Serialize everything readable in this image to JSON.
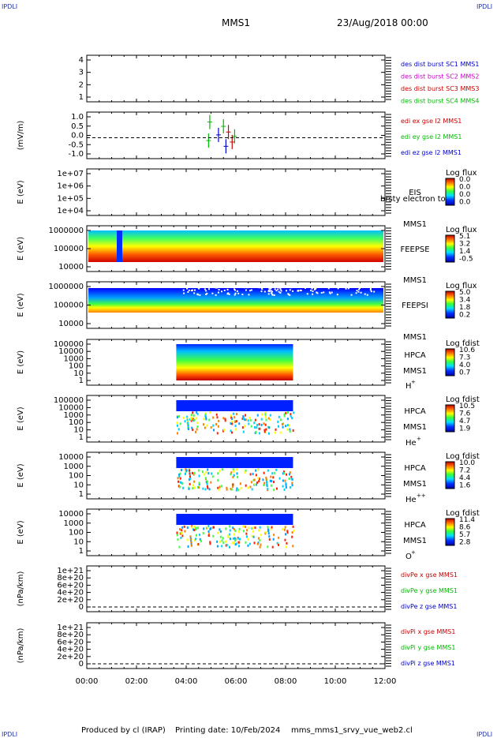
{
  "corners": {
    "top_left": "IPDLI",
    "top_right": "IPDLI",
    "bottom_left": "IPDLI",
    "bottom_right": "IPDLI"
  },
  "header": {
    "mission": "MMS1",
    "date": "23/Aug/2018 00:00"
  },
  "footer": {
    "produced_by": "Produced by cl (IRAP)",
    "printing_date": "Printing date: 10/Feb/2024",
    "filename": "mms_mms1_srvy_vue_web2.cl"
  },
  "colors": {
    "axes": "#000000",
    "blue": "#0000cc",
    "magenta": "#cc00cc",
    "red": "#cc0000",
    "green": "#00bb00"
  },
  "chart_data": [
    {
      "type": "line",
      "id": "panel1",
      "yticks": [
        "1",
        "2",
        "3",
        "4"
      ],
      "ylim": [
        0.6,
        4.4
      ],
      "ylabel": "",
      "series": [
        {
          "name": "des dist burst SC1 MMS1",
          "color": "#0000cc",
          "values": []
        },
        {
          "name": "des dist burst SC2 MMS2",
          "color": "#cc00cc",
          "values": []
        },
        {
          "name": "des dist burst SC3 MMS3",
          "color": "#cc0000",
          "values": []
        },
        {
          "name": "des dist burst SC4 MMS4",
          "color": "#00bb00",
          "values": []
        }
      ]
    },
    {
      "type": "line",
      "id": "panel2",
      "yticks": [
        "-1.0",
        "-0.5",
        "0.0",
        "0.5",
        "1.0"
      ],
      "ylim": [
        -1.3,
        1.3
      ],
      "ylabel": "(mV/m)",
      "series": [
        {
          "name": "edi ex gse l2 MMS1",
          "color": "#cc0000"
        },
        {
          "name": "edi ey gse l2 MMS1",
          "color": "#00bb00"
        },
        {
          "name": "edi ez gse l2 MMS1",
          "color": "#0000cc"
        }
      ]
    },
    {
      "type": "heatmap",
      "id": "panel3",
      "yticks": [
        "1e+04",
        "1e+05",
        "1e+06",
        "1e+07"
      ],
      "ylabel": "E (eV)",
      "instrument": "EIS",
      "spacecraft": "MMS1",
      "overlay": "brsty electron tof",
      "cbar_title": "Log flux",
      "cbar_ticks": [
        "0.0",
        "0.0",
        "0.0",
        "0.0"
      ]
    },
    {
      "type": "heatmap",
      "id": "panel4",
      "yticks": [
        "10000",
        "100000",
        "1000000"
      ],
      "ylabel": "E (eV)",
      "instrument": "FEEPSE",
      "spacecraft": "MMS1",
      "cbar_title": "Log flux",
      "cbar_ticks": [
        "5.1",
        "3.2",
        "1.4",
        "-0.5"
      ]
    },
    {
      "type": "heatmap",
      "id": "panel5",
      "yticks": [
        "10000",
        "100000",
        "1000000"
      ],
      "ylabel": "E (eV)",
      "instrument": "FEEPSI",
      "spacecraft": "MMS1",
      "cbar_title": "Log flux",
      "cbar_ticks": [
        "5.0",
        "3.4",
        "1.8",
        "0.2"
      ]
    },
    {
      "type": "heatmap",
      "id": "panel6",
      "yticks": [
        "1",
        "10",
        "100",
        "1000",
        "10000",
        "100000"
      ],
      "ylabel": "E (eV)",
      "instrument": "HPCA",
      "spacecraft": "MMS1",
      "species": "H",
      "charge": "+",
      "cbar_title": "Log fdist",
      "cbar_ticks": [
        "10.6",
        "7.3",
        "4.0",
        "0.7"
      ]
    },
    {
      "type": "heatmap",
      "id": "panel7",
      "yticks": [
        "1",
        "10",
        "100",
        "1000",
        "10000",
        "100000"
      ],
      "ylabel": "E (eV)",
      "instrument": "HPCA",
      "spacecraft": "MMS1",
      "species": "He",
      "charge": "+",
      "cbar_title": "Log fdist",
      "cbar_ticks": [
        "10.5",
        "7.6",
        "4.7",
        "1.9"
      ]
    },
    {
      "type": "heatmap",
      "id": "panel8",
      "yticks": [
        "1",
        "10",
        "100",
        "1000",
        "10000"
      ],
      "ylabel": "E (eV)",
      "instrument": "HPCA",
      "spacecraft": "MMS1",
      "species": "He",
      "charge": "++",
      "cbar_title": "Log fdist",
      "cbar_ticks": [
        "10.0",
        "7.2",
        "4.4",
        "1.6"
      ]
    },
    {
      "type": "heatmap",
      "id": "panel9",
      "yticks": [
        "1",
        "10",
        "100",
        "1000",
        "10000"
      ],
      "ylabel": "E (eV)",
      "instrument": "HPCA",
      "spacecraft": "MMS1",
      "species": "O",
      "charge": "+",
      "cbar_title": "Log fdist",
      "cbar_ticks": [
        "11.4",
        "8.6",
        "5.7",
        "2.8"
      ]
    },
    {
      "type": "line",
      "id": "panel10",
      "yticks": [
        "0",
        "2e+20",
        "4e+20",
        "6e+20",
        "8e+20",
        "1e+21"
      ],
      "ylabel": "(nPa/km)",
      "series": [
        {
          "name": "divPe x gse MMS1",
          "color": "#cc0000"
        },
        {
          "name": "divPe y gse MMS1",
          "color": "#00bb00"
        },
        {
          "name": "divPe z gse MMS1",
          "color": "#0000cc"
        }
      ]
    },
    {
      "type": "line",
      "id": "panel11",
      "yticks": [
        "0",
        "2e+20",
        "4e+20",
        "6e+20",
        "8e+20",
        "1e+21"
      ],
      "ylabel": "(nPa/km)",
      "series": [
        {
          "name": "divPi x gse MMS1",
          "color": "#cc0000"
        },
        {
          "name": "divPi y gse MMS1",
          "color": "#00bb00"
        },
        {
          "name": "divPi z gse MMS1",
          "color": "#0000cc"
        }
      ]
    }
  ],
  "xaxis": {
    "ticks": [
      "00:00",
      "02:00",
      "04:00",
      "06:00",
      "08:00",
      "10:00",
      "12:00"
    ],
    "range_hours": [
      0,
      12
    ]
  }
}
